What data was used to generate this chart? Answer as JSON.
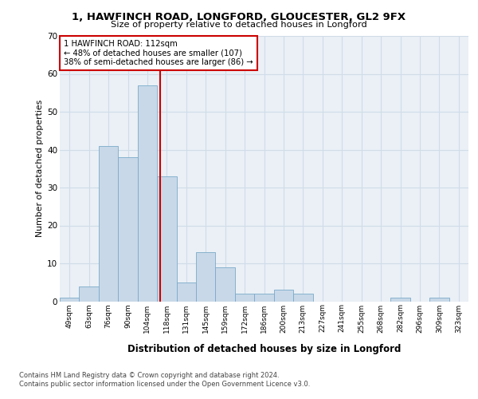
{
  "title_line1": "1, HAWFINCH ROAD, LONGFORD, GLOUCESTER, GL2 9FX",
  "title_line2": "Size of property relative to detached houses in Longford",
  "xlabel": "Distribution of detached houses by size in Longford",
  "ylabel": "Number of detached properties",
  "categories": [
    "49sqm",
    "63sqm",
    "76sqm",
    "90sqm",
    "104sqm",
    "118sqm",
    "131sqm",
    "145sqm",
    "159sqm",
    "172sqm",
    "186sqm",
    "200sqm",
    "213sqm",
    "227sqm",
    "241sqm",
    "255sqm",
    "268sqm",
    "282sqm",
    "296sqm",
    "309sqm",
    "323sqm"
  ],
  "values": [
    1,
    4,
    41,
    38,
    57,
    33,
    5,
    13,
    9,
    2,
    2,
    3,
    2,
    0,
    0,
    0,
    0,
    1,
    0,
    1,
    0
  ],
  "bar_color": "#c8d8e8",
  "bar_edge_color": "#7aaac8",
  "property_label": "1 HAWFINCH ROAD: 112sqm",
  "annotation_line1": "← 48% of detached houses are smaller (107)",
  "annotation_line2": "38% of semi-detached houses are larger (86) →",
  "vline_color": "#cc0000",
  "vline_position": 4.65,
  "ylim": [
    0,
    70
  ],
  "yticks": [
    0,
    10,
    20,
    30,
    40,
    50,
    60,
    70
  ],
  "footer_line1": "Contains HM Land Registry data © Crown copyright and database right 2024.",
  "footer_line2": "Contains public sector information licensed under the Open Government Licence v3.0.",
  "grid_color": "#d0dce8",
  "bg_color": "#eaf0f6",
  "annotation_box_color": "#ffffff",
  "annotation_box_edge": "#cc0000"
}
